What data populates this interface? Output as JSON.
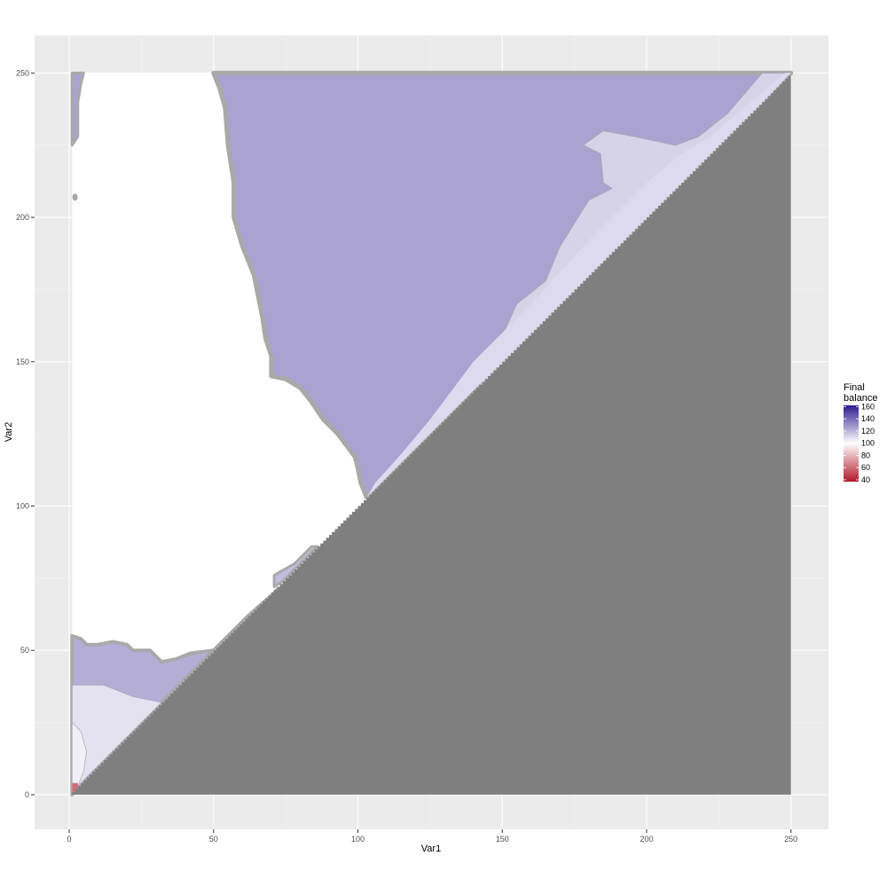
{
  "chart_data": {
    "type": "heatmap",
    "title": "",
    "xlabel": "Var1",
    "ylabel": "Var2",
    "xlim": [
      -12,
      263
    ],
    "ylim": [
      -12,
      263
    ],
    "x_ticks": [
      0,
      50,
      100,
      150,
      200,
      250
    ],
    "y_ticks": [
      0,
      50,
      100,
      150,
      200,
      250
    ],
    "x_tick_labels": [
      "0",
      "50",
      "100",
      "150",
      "200",
      "250"
    ],
    "y_tick_labels": [
      "0",
      "50",
      "100",
      "150",
      "200",
      "250"
    ],
    "grid": true,
    "legend": {
      "title_lines": [
        "Final",
        "balance"
      ],
      "position": "right",
      "breaks": [
        160,
        140,
        120,
        100,
        80,
        60,
        40
      ],
      "break_labels": [
        "160",
        "140",
        "120",
        "100",
        "80",
        "60",
        "40"
      ],
      "range": [
        37,
        162
      ],
      "low_color": "#b2182b",
      "mid_color": "#ffffff",
      "high_color": "#2b1c8e",
      "midpoint": 100
    },
    "na_color": "#7f7f7f",
    "regions": {
      "na_triangle": [
        [
          1,
          0
        ],
        [
          250,
          0
        ],
        [
          250,
          250
        ]
      ],
      "top_purple": {
        "value": 125,
        "points": [
          [
            50,
            250
          ],
          [
            250,
            250
          ],
          [
            103,
            103
          ],
          [
            101,
            108
          ],
          [
            100,
            113
          ],
          [
            99,
            117
          ],
          [
            96,
            121
          ],
          [
            93,
            125
          ],
          [
            88,
            130
          ],
          [
            84,
            136
          ],
          [
            80,
            141
          ],
          [
            75,
            144
          ],
          [
            70,
            145
          ],
          [
            70,
            152
          ],
          [
            68,
            158
          ],
          [
            67,
            165
          ],
          [
            64,
            180
          ],
          [
            60,
            190
          ],
          [
            57,
            200
          ],
          [
            57,
            212
          ],
          [
            55,
            225
          ],
          [
            54,
            238
          ],
          [
            52,
            245
          ]
        ]
      },
      "upper_light_band": {
        "value": 112,
        "points": [
          [
            178,
            225
          ],
          [
            184,
            222
          ],
          [
            185,
            212
          ],
          [
            188,
            210
          ],
          [
            180,
            206
          ],
          [
            170,
            190
          ],
          [
            165,
            178
          ],
          [
            160,
            174
          ],
          [
            155,
            170
          ],
          [
            140,
            137
          ],
          [
            160,
            157
          ],
          [
            170,
            168
          ],
          [
            188,
            186
          ],
          [
            210,
            208
          ],
          [
            232,
            230
          ],
          [
            250,
            250
          ],
          [
            240,
            250
          ],
          [
            228,
            236
          ],
          [
            218,
            228
          ],
          [
            210,
            225
          ],
          [
            196,
            228
          ],
          [
            185,
            230
          ]
        ]
      },
      "diag_light_strip": {
        "value": 110,
        "points": [
          [
            250,
            250
          ],
          [
            248,
            250
          ],
          [
            236,
            240
          ],
          [
            222,
            228
          ],
          [
            212,
            222
          ],
          [
            200,
            212
          ],
          [
            180,
            192
          ],
          [
            160,
            170
          ],
          [
            140,
            150
          ],
          [
            125,
            130
          ],
          [
            115,
            118
          ],
          [
            106,
            108
          ],
          [
            103,
            103
          ]
        ]
      },
      "left_edge_strip": {
        "value": 125,
        "points": [
          [
            1,
            250
          ],
          [
            5,
            250
          ],
          [
            4,
            246
          ],
          [
            3,
            240
          ],
          [
            3,
            228
          ],
          [
            1,
            225
          ]
        ]
      },
      "bottom_purple": {
        "value": 122,
        "points": [
          [
            1,
            55
          ],
          [
            4,
            54
          ],
          [
            6,
            52
          ],
          [
            10,
            52
          ],
          [
            15,
            53
          ],
          [
            20,
            52
          ],
          [
            22,
            50
          ],
          [
            28,
            50
          ],
          [
            32,
            46
          ],
          [
            37,
            47
          ],
          [
            42,
            49
          ],
          [
            50,
            50
          ],
          [
            58,
            56
          ],
          [
            64,
            62
          ],
          [
            70,
            69
          ],
          [
            72,
            71
          ],
          [
            70,
            69
          ],
          [
            62,
            62
          ],
          [
            55,
            55
          ],
          [
            48,
            48
          ],
          [
            40,
            40
          ],
          [
            32,
            32
          ],
          [
            22,
            22
          ],
          [
            12,
            12
          ],
          [
            4,
            4
          ],
          [
            1,
            0
          ]
        ]
      },
      "bottom_light": {
        "value": 108,
        "points": [
          [
            1,
            38
          ],
          [
            12,
            38
          ],
          [
            22,
            34
          ],
          [
            32,
            32
          ],
          [
            40,
            40
          ],
          [
            30,
            30
          ],
          [
            20,
            20
          ],
          [
            10,
            10
          ],
          [
            4,
            4
          ],
          [
            1,
            0
          ]
        ]
      },
      "bottom_edge_light": {
        "value": 104,
        "points": [
          [
            1,
            25
          ],
          [
            4,
            22
          ],
          [
            6,
            15
          ],
          [
            5,
            8
          ],
          [
            3,
            3
          ],
          [
            1,
            0
          ]
        ]
      },
      "mid_diag_fragment": {
        "value": 118,
        "points": [
          [
            71,
            76
          ],
          [
            78,
            80
          ],
          [
            84,
            86
          ],
          [
            86,
            86
          ],
          [
            80,
            80
          ],
          [
            74,
            74
          ],
          [
            71,
            72
          ]
        ]
      },
      "red_spot": {
        "value": 60,
        "points": [
          [
            1,
            4
          ],
          [
            3,
            4
          ],
          [
            3,
            1
          ],
          [
            1,
            1
          ]
        ]
      },
      "small_blob": {
        "value": 120,
        "x": 2,
        "y": 207
      }
    }
  }
}
